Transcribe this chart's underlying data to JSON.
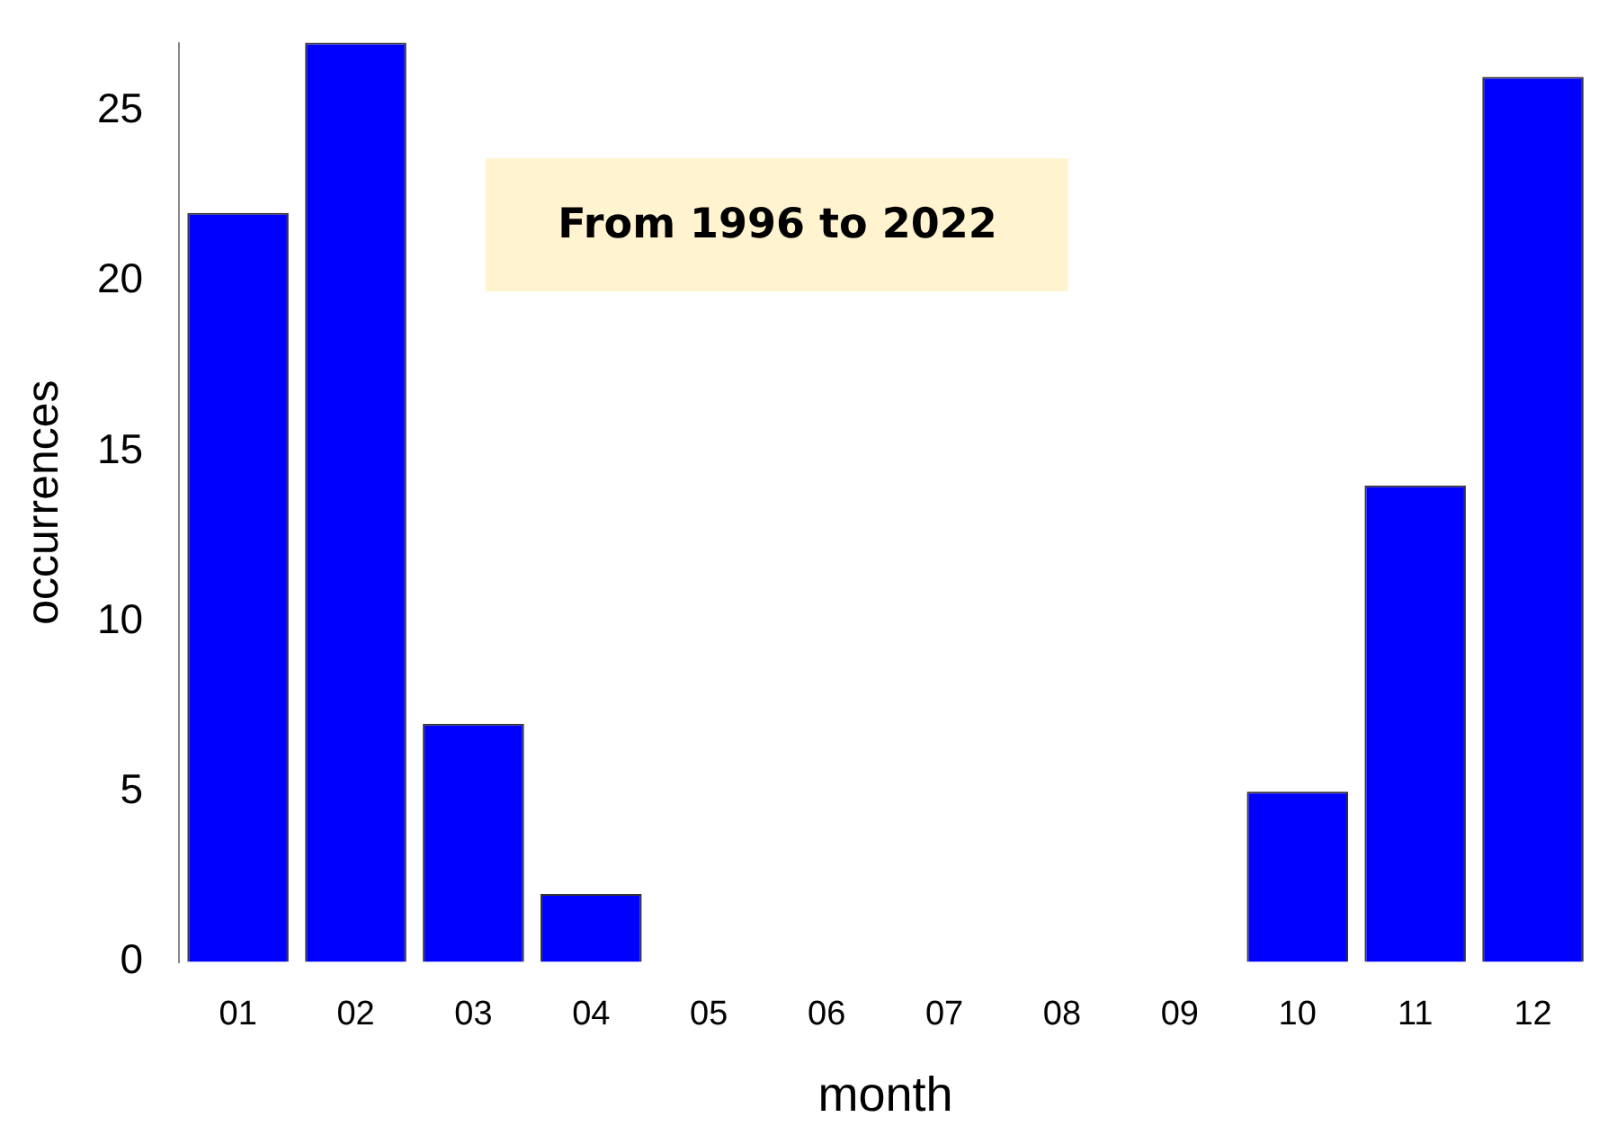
{
  "chart_data": {
    "type": "bar",
    "xlabel": "month",
    "ylabel": "occurrences",
    "categories": [
      "01",
      "02",
      "03",
      "04",
      "05",
      "06",
      "07",
      "08",
      "09",
      "10",
      "11",
      "12"
    ],
    "values": [
      22,
      27,
      7,
      2,
      0,
      0,
      0,
      0,
      0,
      5,
      14,
      26
    ],
    "color": "#0000ff",
    "ylim": [
      0,
      27
    ],
    "yticks": [
      0,
      5,
      10,
      15,
      20,
      25
    ],
    "grid": false,
    "legend": false,
    "annotations": [
      "From 1996 to 2022"
    ]
  }
}
